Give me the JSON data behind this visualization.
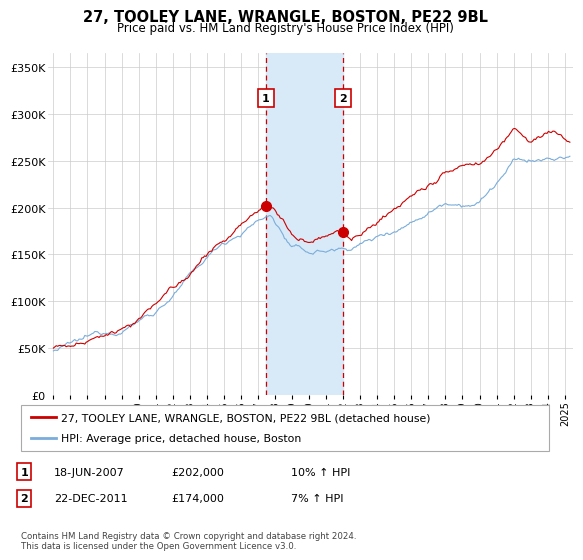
{
  "title": "27, TOOLEY LANE, WRANGLE, BOSTON, PE22 9BL",
  "subtitle": "Price paid vs. HM Land Registry's House Price Index (HPI)",
  "ylabel_ticks": [
    "£0",
    "£50K",
    "£100K",
    "£150K",
    "£200K",
    "£250K",
    "£300K",
    "£350K"
  ],
  "ytick_values": [
    0,
    50000,
    100000,
    150000,
    200000,
    250000,
    300000,
    350000
  ],
  "ylim": [
    0,
    365000
  ],
  "sale1": {
    "date_num": 2007.46,
    "price": 202000,
    "label": "1",
    "date_str": "18-JUN-2007",
    "pct": "10%"
  },
  "sale2": {
    "date_num": 2011.98,
    "price": 174000,
    "label": "2",
    "date_str": "22-DEC-2011",
    "pct": "7%"
  },
  "shade_x1": 2007.46,
  "shade_x2": 2011.98,
  "red_line_color": "#cc0000",
  "blue_line_color": "#7aaddb",
  "shade_color": "#d8eaf7",
  "copyright_text": "Contains HM Land Registry data © Crown copyright and database right 2024.\nThis data is licensed under the Open Government Licence v3.0.",
  "legend1_label": "27, TOOLEY LANE, WRANGLE, BOSTON, PE22 9BL (detached house)",
  "legend2_label": "HPI: Average price, detached house, Boston",
  "xlim_start": 1994.7,
  "xlim_end": 2025.5,
  "xtick_years": [
    1995,
    1996,
    1997,
    1998,
    1999,
    2000,
    2001,
    2002,
    2003,
    2004,
    2005,
    2006,
    2007,
    2008,
    2009,
    2010,
    2011,
    2012,
    2013,
    2014,
    2015,
    2016,
    2017,
    2018,
    2019,
    2020,
    2021,
    2022,
    2023,
    2024,
    2025
  ]
}
